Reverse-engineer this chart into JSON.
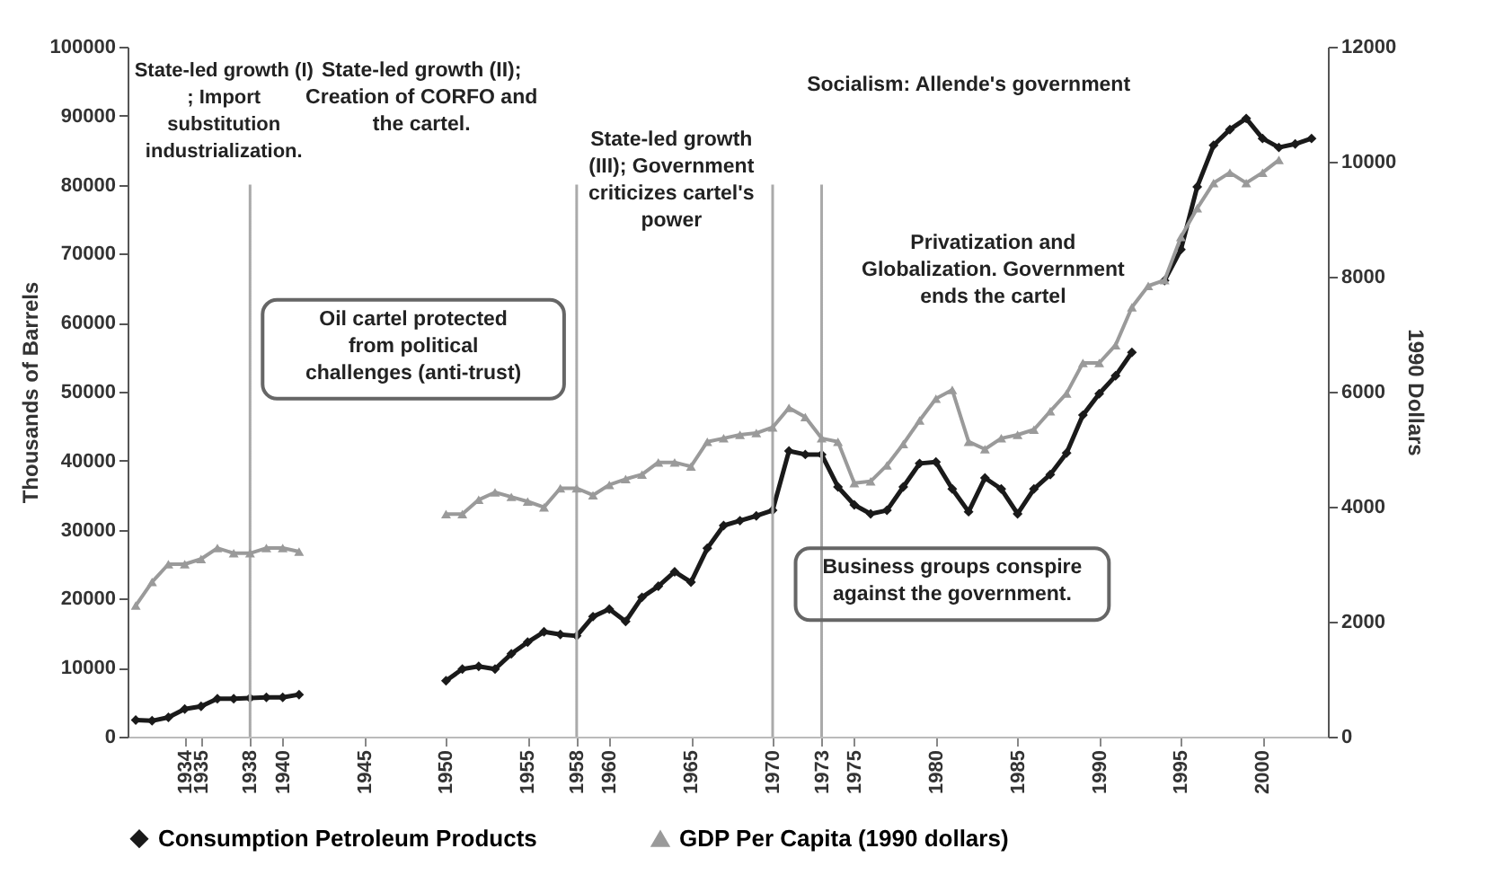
{
  "chart_data": {
    "type": "line",
    "ylabel": "Thousands of Barrels",
    "y2label": "1990 Dollars",
    "x": [
      1931,
      1932,
      1933,
      1934,
      1935,
      1936,
      1937,
      1938,
      1939,
      1940,
      1941,
      1942,
      1943,
      1944,
      1945,
      1946,
      1947,
      1948,
      1949,
      1950,
      1951,
      1952,
      1953,
      1954,
      1955,
      1956,
      1957,
      1958,
      1959,
      1960,
      1961,
      1962,
      1963,
      1964,
      1965,
      1966,
      1967,
      1968,
      1969,
      1970,
      1971,
      1972,
      1973,
      1974,
      1975,
      1976,
      1977,
      1978,
      1979,
      1980,
      1981,
      1982,
      1983,
      1984,
      1985,
      1986,
      1987,
      1988,
      1989,
      1990,
      1991,
      1992,
      1993,
      1994,
      1995,
      1996,
      1997,
      1998,
      1999,
      2000,
      2001,
      2002,
      2003
    ],
    "series": [
      {
        "name": "Consumption Petroleum Products",
        "color": "#1a1a1a",
        "marker": "diamond",
        "values": [
          2400,
          2300,
          2800,
          4000,
          4400,
          5500,
          5500,
          5600,
          5700,
          5700,
          6100,
          null,
          null,
          null,
          null,
          null,
          null,
          null,
          null,
          8100,
          9800,
          10200,
          9800,
          12000,
          13700,
          15200,
          14800,
          14600,
          17400,
          18500,
          16700,
          20200,
          21800,
          23900,
          22400,
          27300,
          30600,
          31300,
          32000,
          32800,
          41400,
          40900,
          40900,
          36200,
          33600,
          32300,
          32800,
          36200,
          39600,
          39800,
          35900,
          32600,
          37500,
          35900,
          32300,
          35900,
          38000,
          41100,
          46600,
          49700,
          52300,
          55700,
          null,
          66100,
          70600,
          79700,
          85700,
          88000,
          89600,
          86700,
          85400,
          85900,
          86700
        ]
      },
      {
        "name": "GDP Per Capita (1990 dollars)",
        "color": "#9a9a9a",
        "marker": "triangle",
        "axis": "y2",
        "values": [
          2280,
          2690,
          3000,
          3000,
          3090,
          3280,
          3190,
          3190,
          3280,
          3280,
          3220,
          null,
          null,
          null,
          null,
          null,
          null,
          null,
          null,
          3870,
          3870,
          4120,
          4250,
          4170,
          4090,
          3990,
          4320,
          4320,
          4200,
          4380,
          4480,
          4560,
          4770,
          4770,
          4700,
          5130,
          5190,
          5250,
          5280,
          5380,
          5720,
          5560,
          5190,
          5130,
          4410,
          4440,
          4720,
          5090,
          5500,
          5880,
          6030,
          5130,
          5000,
          5190,
          5250,
          5340,
          5660,
          5970,
          6500,
          6500,
          6810,
          7470,
          7840,
          7940,
          8690,
          9190,
          9630,
          9810,
          9630,
          9810,
          10030,
          null,
          null
        ]
      }
    ],
    "xlim": [
      1930.5,
      2004
    ],
    "xticks": [
      1934,
      1935,
      1938,
      1940,
      1945,
      1950,
      1955,
      1958,
      1960,
      1965,
      1970,
      1973,
      1975,
      1980,
      1985,
      1990,
      1995,
      2000
    ],
    "ylim": [
      0,
      100000
    ],
    "yticks": [
      0,
      10000,
      20000,
      30000,
      40000,
      50000,
      60000,
      70000,
      80000,
      90000,
      100000
    ],
    "y2lim": [
      0,
      12000
    ],
    "y2ticks": [
      0,
      2000,
      4000,
      6000,
      8000,
      10000,
      12000
    ],
    "ref_lines": [
      {
        "axis": "x",
        "value": 1938,
        "color": "#aaaaaa"
      },
      {
        "axis": "x",
        "value": 1958,
        "color": "#aaaaaa"
      },
      {
        "axis": "x",
        "value": 1970,
        "color": "#aaaaaa"
      },
      {
        "axis": "x",
        "value": 1973,
        "color": "#aaaaaa"
      }
    ],
    "annotations": [
      "State-led growth (I) ; Import substitution industrialization.",
      "State-led growth (II); Creation of CORFO and the cartel.",
      "State-led growth (III); Government criticizes cartel's power",
      "Socialism: Allende's government",
      "Oil cartel protected from political challenges (anti-trust)",
      "Privatization and Globalization. Government ends the cartel",
      "Business groups conspire against the government."
    ],
    "grid": false,
    "legend": "bottom"
  }
}
